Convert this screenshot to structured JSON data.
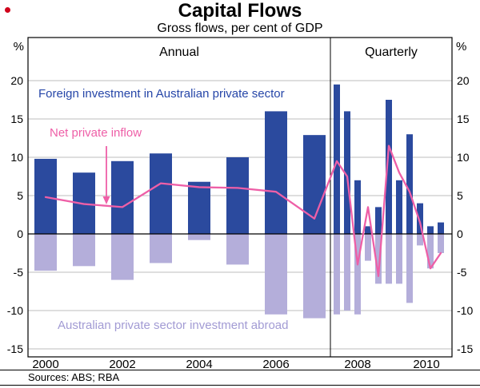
{
  "page": {
    "title": "Capital Flows",
    "subtitle": "Gross flows, per cent of GDP",
    "sources": "Sources: ABS; RBA"
  },
  "labels": {
    "unit_left": "%",
    "unit_right": "%",
    "section_annual": "Annual",
    "section_quarterly": "Quarterly",
    "legend_foreign": "Foreign investment in Australian private sector",
    "legend_net": "Net private inflow",
    "legend_abroad": "Australian private sector investment abroad"
  },
  "colors": {
    "bar_foreign": "#2b4a9e",
    "bar_abroad": "#b4aeda",
    "net_line": "#ee5fa7",
    "legend_foreign_text": "#2646a8",
    "legend_abroad_text": "#a29bd4",
    "axis": "#000000",
    "gridline": "#bdbdbd"
  },
  "chart_data": {
    "type": "bar",
    "title": "Capital Flows",
    "subtitle": "Gross flows, per cent of GDP",
    "ylabel": "%",
    "ylim": [
      -15,
      20
    ],
    "yticks": [
      20,
      15,
      10,
      5,
      0,
      -5,
      -10,
      -15
    ],
    "xticks": [
      "2000",
      "2002",
      "2004",
      "2006",
      "2008",
      "2010"
    ],
    "sections": [
      "Annual",
      "Quarterly"
    ],
    "grid": true,
    "legend_position": "inside",
    "annual": {
      "x": [
        "2000",
        "2001",
        "2002",
        "2003",
        "2004",
        "2005",
        "2006",
        "2007"
      ],
      "series": [
        {
          "name": "Foreign investment in Australian private sector",
          "type": "bar",
          "values": [
            9.8,
            8.0,
            9.5,
            10.5,
            6.8,
            10.0,
            16.0,
            12.9
          ]
        },
        {
          "name": "Australian private sector investment abroad",
          "type": "bar",
          "values": [
            -4.8,
            -4.2,
            -6.0,
            -3.8,
            -0.8,
            -4.0,
            -10.5,
            -11.0
          ]
        },
        {
          "name": "Net private inflow",
          "type": "line",
          "values": [
            4.8,
            3.9,
            3.5,
            6.6,
            6.1,
            6.0,
            5.5,
            2.0
          ]
        }
      ]
    },
    "quarterly": {
      "x": [
        "2007 Q4",
        "2008 Q1",
        "2008 Q2",
        "2008 Q3",
        "2008 Q4",
        "2009 Q1",
        "2009 Q2",
        "2009 Q3",
        "2009 Q4",
        "2010 Q1",
        "2010 Q2"
      ],
      "series": [
        {
          "name": "Foreign investment in Australian private sector",
          "type": "bar",
          "values": [
            19.5,
            16.0,
            7.0,
            1.0,
            3.5,
            17.5,
            7.0,
            13.0,
            4.0,
            1.0,
            1.5
          ]
        },
        {
          "name": "Australian private sector investment abroad",
          "type": "bar",
          "values": [
            -10.5,
            -10.0,
            -10.5,
            -3.5,
            -6.5,
            -6.5,
            -6.5,
            -9.0,
            -1.5,
            -4.5,
            -2.5
          ]
        },
        {
          "name": "Net private inflow",
          "type": "line",
          "values": [
            9.5,
            7.5,
            -4.0,
            3.5,
            -5.5,
            11.5,
            8.0,
            5.5,
            1.5,
            -4.5,
            -2.5
          ]
        }
      ]
    },
    "annotation": {
      "text": "Net private inflow",
      "arrow_target_x": "2002",
      "arrow_target_y": 3.5
    }
  }
}
